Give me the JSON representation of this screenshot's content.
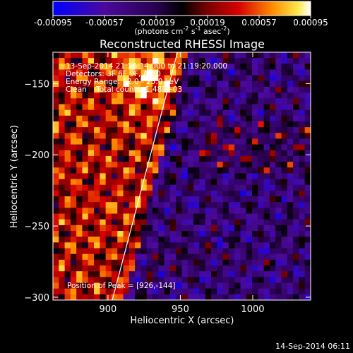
{
  "chart_data": {
    "type": "heatmap",
    "title": "Reconstructed RHESSI Image",
    "xlabel": "Heliocentric X (arcsec)",
    "ylabel": "Heliocentric Y (arcsec)",
    "xlim": [
      862,
      1040
    ],
    "ylim": [
      -302,
      -128
    ],
    "x_ticks": [
      900,
      950,
      1000
    ],
    "y_ticks": [
      -150,
      -200,
      -250,
      -300
    ],
    "colorbar": {
      "ticks": [
        "-0.00095",
        "-0.00057",
        "-0.00019",
        "0.00019",
        "0.00057",
        "0.00095"
      ],
      "label_parts": [
        "(photons cm",
        "-2",
        " s",
        "-1",
        " asec",
        "-2",
        ")"
      ],
      "range": [
        -0.00095,
        0.00095
      ]
    },
    "annotations": [
      "13-Sep-2014 21:16:14.000 to 21:19:20.000",
      "Detectors: 3F 6F 9F, Att 0",
      "Energy Range: 12.0 - 25.0 keV",
      "Clean    Total counts: 1.48E+03"
    ],
    "peak_label": "Position of Peak = [926,-144]",
    "peak_position": [
      926,
      -144
    ],
    "limb_line": {
      "x": [
        903,
        948
      ],
      "y": [
        -302,
        -128
      ]
    },
    "grid_size": [
      44,
      43
    ],
    "seed": 917
  },
  "timestamp": "14-Sep-2014 06:11"
}
